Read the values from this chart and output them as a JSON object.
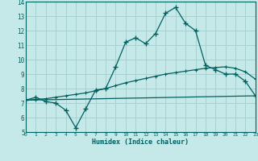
{
  "xlabel": "Humidex (Indice chaleur)",
  "xlim": [
    0,
    23
  ],
  "ylim": [
    5,
    14
  ],
  "xticks": [
    0,
    1,
    2,
    3,
    4,
    5,
    6,
    7,
    8,
    9,
    10,
    11,
    12,
    13,
    14,
    15,
    16,
    17,
    18,
    19,
    20,
    21,
    22,
    23
  ],
  "yticks": [
    5,
    6,
    7,
    8,
    9,
    10,
    11,
    12,
    13,
    14
  ],
  "bg_color": "#c5e8e8",
  "grid_color": "#a8d0d0",
  "line_color": "#006060",
  "line1_x": [
    0,
    1,
    2,
    3,
    4,
    5,
    6,
    7,
    8,
    9,
    10,
    11,
    12,
    13,
    14,
    15,
    16,
    17,
    18,
    19,
    20,
    21,
    22,
    23
  ],
  "line1_y": [
    7.2,
    7.4,
    7.1,
    7.0,
    6.5,
    5.3,
    6.6,
    7.9,
    8.0,
    9.5,
    11.2,
    11.5,
    11.1,
    11.8,
    13.2,
    13.6,
    12.5,
    12.0,
    9.6,
    9.3,
    9.0,
    9.0,
    8.5,
    7.5
  ],
  "line2_x": [
    0,
    23
  ],
  "line2_y": [
    7.2,
    7.5
  ],
  "line3_x": [
    0,
    1,
    2,
    3,
    4,
    5,
    6,
    7,
    8,
    9,
    10,
    11,
    12,
    13,
    14,
    15,
    16,
    17,
    18,
    19,
    20,
    21,
    22,
    23
  ],
  "line3_y": [
    7.2,
    7.25,
    7.3,
    7.4,
    7.5,
    7.6,
    7.7,
    7.85,
    8.0,
    8.2,
    8.4,
    8.55,
    8.7,
    8.85,
    9.0,
    9.1,
    9.2,
    9.3,
    9.4,
    9.45,
    9.5,
    9.4,
    9.15,
    8.65
  ]
}
